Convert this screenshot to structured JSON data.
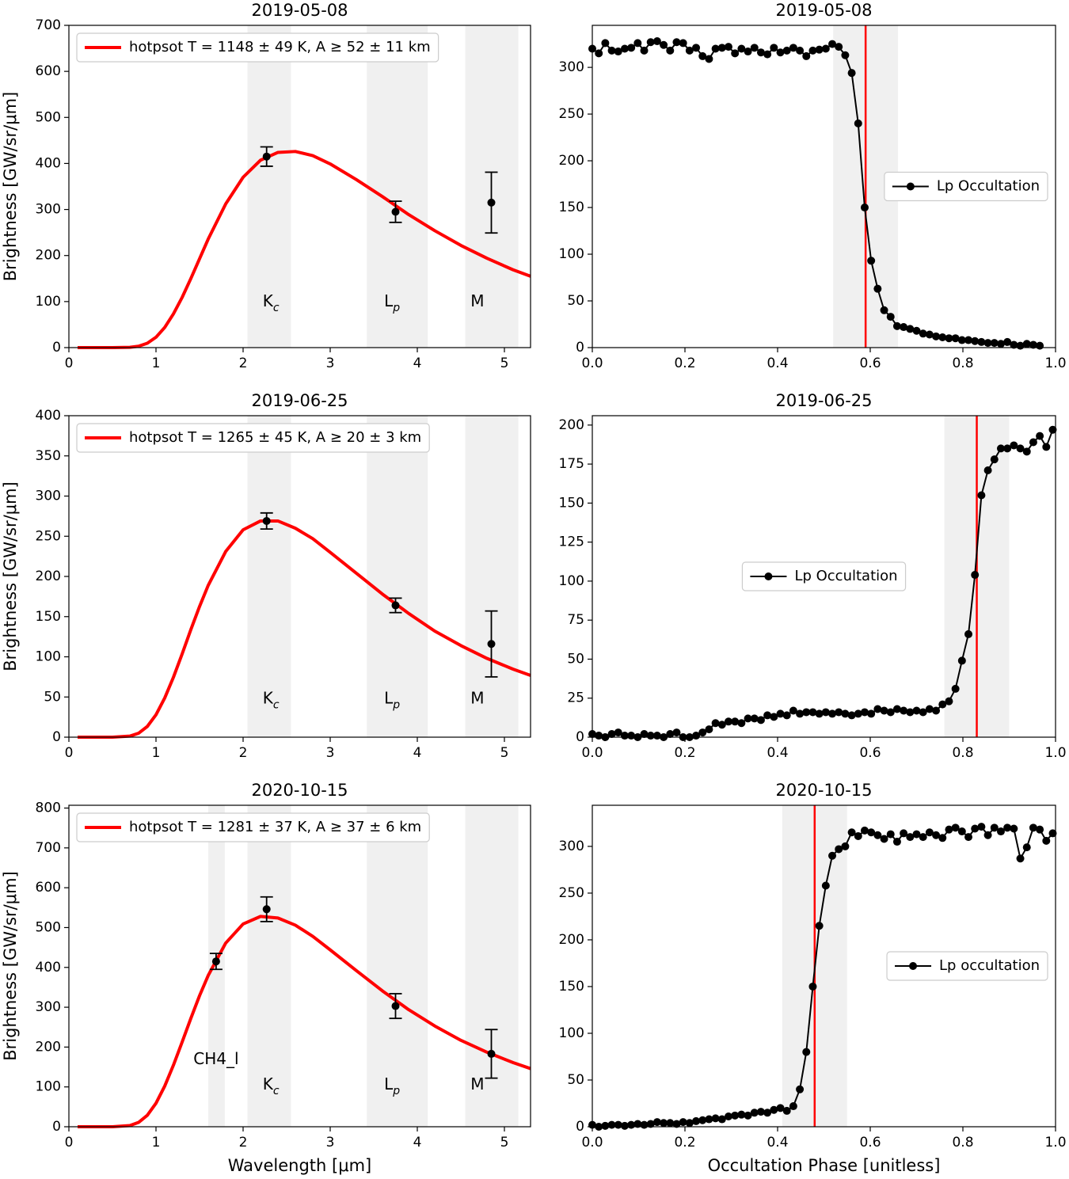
{
  "chart_data": [
    {
      "type": "line",
      "title": "2019-05-08",
      "ylabel": "Brightness [GW/sr/μm]",
      "xlim": [
        0,
        5.3
      ],
      "ylim": [
        0,
        700
      ],
      "xticks": [
        0,
        1,
        2,
        3,
        4,
        5
      ],
      "yticks": [
        0,
        100,
        200,
        300,
        400,
        500,
        600,
        700
      ],
      "legend": "upper left",
      "bands": [
        {
          "label": "K",
          "sub": "c",
          "range": [
            2.05,
            2.55
          ],
          "x": 2.32,
          "y": 100
        },
        {
          "label": "L",
          "sub": "p",
          "range": [
            3.42,
            4.12
          ],
          "x": 3.71,
          "y": 100
        },
        {
          "label": "M",
          "range": [
            4.55,
            5.16
          ],
          "x": 4.69,
          "y": 100
        }
      ],
      "series": [
        {
          "name": "hotpsot T = 1148 ± 49 K, A ≥ 52 ± 11 km",
          "color": "#ff0000",
          "x": [
            0.1,
            0.5,
            0.7,
            0.8,
            0.9,
            1.0,
            1.1,
            1.2,
            1.3,
            1.4,
            1.5,
            1.6,
            1.8,
            2.0,
            2.2,
            2.4,
            2.6,
            2.8,
            3.0,
            3.3,
            3.6,
            3.9,
            4.2,
            4.5,
            4.8,
            5.1,
            5.3
          ],
          "values": [
            0,
            0,
            0.6,
            3.0,
            9.4,
            22.5,
            43.7,
            73.2,
            109,
            150,
            193,
            236,
            312,
            370,
            407,
            424,
            426,
            417,
            399,
            365,
            328,
            289,
            254,
            222,
            194,
            169,
            155
          ]
        },
        {
          "color": "#000000",
          "marker": true,
          "line": false,
          "x": [
            2.27,
            3.75,
            4.85
          ],
          "values": [
            415,
            295,
            315
          ],
          "errors": [
            21,
            23,
            66
          ]
        }
      ]
    },
    {
      "type": "line",
      "title": "2019-05-08",
      "xlim": [
        0,
        1
      ],
      "ylim": [
        0,
        345
      ],
      "xticks": [
        {
          "value": 0,
          "label": "0.0"
        },
        0.2,
        0.4,
        0.6,
        0.8,
        {
          "value": 1,
          "label": "1.0"
        }
      ],
      "yticks": [
        0,
        50,
        100,
        150,
        200,
        250,
        300
      ],
      "legend": "center right",
      "bands": [
        {
          "range": [
            0.52,
            0.66
          ]
        }
      ],
      "vlines": [
        {
          "x": 0.59,
          "color": "#ff0000"
        }
      ],
      "series": [
        {
          "name": "Lp Occultation",
          "color": "#000000",
          "marker": true,
          "line": true,
          "x": [
            0,
            0.014,
            0.028,
            0.042,
            0.056,
            0.07,
            0.084,
            0.098,
            0.112,
            0.126,
            0.14,
            0.154,
            0.168,
            0.182,
            0.196,
            0.21,
            0.224,
            0.238,
            0.252,
            0.266,
            0.28,
            0.294,
            0.308,
            0.322,
            0.336,
            0.35,
            0.364,
            0.378,
            0.392,
            0.406,
            0.42,
            0.434,
            0.448,
            0.462,
            0.476,
            0.49,
            0.504,
            0.518,
            0.532,
            0.546,
            0.56,
            0.574,
            0.588,
            0.602,
            0.616,
            0.63,
            0.644,
            0.658,
            0.672,
            0.686,
            0.7,
            0.714,
            0.728,
            0.742,
            0.756,
            0.77,
            0.784,
            0.798,
            0.812,
            0.826,
            0.84,
            0.854,
            0.868,
            0.882,
            0.896,
            0.91,
            0.924,
            0.938,
            0.952,
            0.966
          ],
          "values": [
            320,
            315,
            326,
            318,
            317,
            320,
            321,
            326,
            318,
            327,
            328,
            324,
            318,
            327,
            326,
            318,
            321,
            312,
            309,
            320,
            321,
            322,
            315,
            320,
            317,
            321,
            316,
            314,
            321,
            316,
            318,
            321,
            318,
            312,
            318,
            319,
            320,
            325,
            322,
            313,
            294,
            240,
            150,
            93,
            63,
            40,
            33,
            23,
            22,
            20,
            18,
            15,
            14,
            12,
            11,
            10,
            10,
            8,
            8,
            7,
            6,
            5,
            5,
            4,
            6,
            3,
            2,
            4,
            3,
            2
          ]
        }
      ]
    },
    {
      "type": "line",
      "title": "2019-06-25",
      "ylabel": "Brightness [GW/sr/μm]",
      "xlim": [
        0,
        5.3
      ],
      "ylim": [
        0,
        400
      ],
      "xticks": [
        0,
        1,
        2,
        3,
        4,
        5
      ],
      "yticks": [
        0,
        50,
        100,
        150,
        200,
        250,
        300,
        350,
        400
      ],
      "legend": "upper left",
      "bands": [
        {
          "label": "K",
          "sub": "c",
          "range": [
            2.05,
            2.55
          ],
          "x": 2.32,
          "y": 48
        },
        {
          "label": "L",
          "sub": "p",
          "range": [
            3.42,
            4.12
          ],
          "x": 3.71,
          "y": 48
        },
        {
          "label": "M",
          "range": [
            4.55,
            5.16
          ],
          "x": 4.69,
          "y": 48
        }
      ],
      "series": [
        {
          "name": "hotpsot T = 1265 ± 45 K, A ≥ 20 ± 3 km",
          "color": "#ff0000",
          "x": [
            0.1,
            0.5,
            0.7,
            0.8,
            0.9,
            1.0,
            1.1,
            1.2,
            1.3,
            1.4,
            1.5,
            1.6,
            1.8,
            2.0,
            2.2,
            2.4,
            2.6,
            2.8,
            3.0,
            3.3,
            3.6,
            3.9,
            4.2,
            4.5,
            4.8,
            5.1,
            5.3
          ],
          "values": [
            0,
            0,
            1.3,
            4.9,
            13.3,
            27.9,
            48.7,
            74.5,
            103.5,
            133.8,
            162.6,
            189,
            231,
            258,
            269,
            269,
            260,
            247,
            230,
            204,
            178,
            154,
            132,
            114,
            98,
            84.6,
            76.8
          ]
        },
        {
          "color": "#000000",
          "marker": true,
          "line": false,
          "x": [
            2.27,
            3.75,
            4.85
          ],
          "values": [
            269,
            164,
            116
          ],
          "errors": [
            10,
            9,
            41
          ]
        }
      ]
    },
    {
      "type": "line",
      "title": "2019-06-25",
      "xlim": [
        0,
        1
      ],
      "ylim": [
        0,
        206
      ],
      "xticks": [
        {
          "value": 0,
          "label": "0.0"
        },
        0.2,
        0.4,
        0.6,
        0.8,
        {
          "value": 1,
          "label": "1.0"
        }
      ],
      "yticks": [
        0,
        25,
        50,
        75,
        100,
        125,
        150,
        175,
        200
      ],
      "legend": "center",
      "bands": [
        {
          "range": [
            0.76,
            0.9
          ]
        }
      ],
      "vlines": [
        {
          "x": 0.83,
          "color": "#ff0000"
        }
      ],
      "series": [
        {
          "name": "Lp Occultation",
          "color": "#000000",
          "marker": true,
          "line": true,
          "x": [
            0,
            0.014,
            0.028,
            0.042,
            0.056,
            0.07,
            0.084,
            0.098,
            0.112,
            0.126,
            0.14,
            0.154,
            0.168,
            0.182,
            0.196,
            0.21,
            0.224,
            0.238,
            0.252,
            0.266,
            0.28,
            0.294,
            0.308,
            0.322,
            0.336,
            0.35,
            0.364,
            0.378,
            0.392,
            0.406,
            0.42,
            0.434,
            0.448,
            0.462,
            0.476,
            0.49,
            0.504,
            0.518,
            0.532,
            0.546,
            0.56,
            0.574,
            0.588,
            0.602,
            0.616,
            0.63,
            0.644,
            0.658,
            0.672,
            0.686,
            0.7,
            0.714,
            0.728,
            0.742,
            0.756,
            0.77,
            0.784,
            0.798,
            0.812,
            0.826,
            0.84,
            0.854,
            0.868,
            0.882,
            0.896,
            0.91,
            0.924,
            0.938,
            0.952,
            0.966,
            0.98,
            0.994
          ],
          "values": [
            2,
            1,
            0,
            2,
            3,
            1,
            1,
            0,
            2,
            1,
            1,
            0,
            2,
            3,
            0,
            0,
            1,
            3,
            5,
            9,
            8,
            10,
            10,
            9,
            12,
            12,
            11,
            14,
            13,
            15,
            14,
            17,
            15,
            16,
            16,
            15,
            16,
            15,
            16,
            15,
            14,
            15,
            16,
            15,
            18,
            17,
            16,
            18,
            17,
            16,
            17,
            16,
            18,
            17,
            21,
            23,
            31,
            49,
            66,
            104,
            155,
            171,
            178,
            185,
            185,
            187,
            185,
            183,
            189,
            193,
            186,
            197
          ]
        }
      ]
    },
    {
      "type": "line",
      "title": "2020-10-15",
      "xlabel": "Wavelength [μm]",
      "ylabel": "Brightness [GW/sr/μm]",
      "xlim": [
        0,
        5.3
      ],
      "ylim": [
        0,
        807
      ],
      "xticks": [
        0,
        1,
        2,
        3,
        4,
        5
      ],
      "yticks": [
        0,
        100,
        200,
        300,
        400,
        500,
        600,
        700,
        800
      ],
      "legend": "upper left",
      "bands": [
        {
          "label": "CH4_l",
          "range": [
            1.6,
            1.79
          ],
          "x": 1.69,
          "y": 169
        },
        {
          "label": "K",
          "sub": "c",
          "range": [
            2.05,
            2.55
          ],
          "x": 2.32,
          "y": 105
        },
        {
          "label": "L",
          "sub": "p",
          "range": [
            3.42,
            4.12
          ],
          "x": 3.71,
          "y": 105
        },
        {
          "label": "M",
          "range": [
            4.55,
            5.16
          ],
          "x": 4.69,
          "y": 105
        }
      ],
      "series": [
        {
          "name": "hotpsot T = 1281 ± 37 K, A ≥ 37 ± 6 km",
          "color": "#ff0000",
          "x": [
            0.1,
            0.5,
            0.7,
            0.8,
            0.9,
            1.0,
            1.1,
            1.2,
            1.3,
            1.4,
            1.5,
            1.6,
            1.8,
            2.0,
            2.2,
            2.4,
            2.6,
            2.8,
            3.0,
            3.3,
            3.6,
            3.9,
            4.2,
            4.5,
            4.8,
            5.1,
            5.3
          ],
          "values": [
            0,
            0,
            2.9,
            10.9,
            28.7,
            59,
            102,
            154.5,
            212.6,
            272,
            329,
            380,
            461,
            509,
            528,
            524,
            506,
            478,
            444,
            392,
            341,
            294,
            253,
            217,
            187,
            161,
            146
          ]
        },
        {
          "color": "#000000",
          "marker": true,
          "line": false,
          "x": [
            1.69,
            2.27,
            3.75,
            4.85
          ],
          "values": [
            415,
            546,
            303,
            183
          ],
          "errors": [
            20,
            31,
            31,
            61
          ]
        }
      ]
    },
    {
      "type": "line",
      "title": "2020-10-15",
      "xlabel": "Occultation Phase [unitless]",
      "xlim": [
        0,
        1
      ],
      "ylim": [
        0,
        344
      ],
      "xticks": [
        {
          "value": 0,
          "label": "0.0"
        },
        0.2,
        0.4,
        0.6,
        0.8,
        {
          "value": 1,
          "label": "1.0"
        }
      ],
      "yticks": [
        0,
        50,
        100,
        150,
        200,
        250,
        300
      ],
      "legend": "center right",
      "bands": [
        {
          "range": [
            0.41,
            0.55
          ]
        }
      ],
      "vlines": [
        {
          "x": 0.48,
          "color": "#ff0000"
        }
      ],
      "series": [
        {
          "name": "Lp occultation",
          "color": "#000000",
          "marker": true,
          "line": true,
          "x": [
            0,
            0.014,
            0.028,
            0.042,
            0.056,
            0.07,
            0.084,
            0.098,
            0.112,
            0.126,
            0.14,
            0.154,
            0.168,
            0.182,
            0.196,
            0.21,
            0.224,
            0.238,
            0.252,
            0.266,
            0.28,
            0.294,
            0.308,
            0.322,
            0.336,
            0.35,
            0.364,
            0.378,
            0.392,
            0.406,
            0.42,
            0.434,
            0.448,
            0.462,
            0.476,
            0.49,
            0.504,
            0.518,
            0.532,
            0.546,
            0.56,
            0.574,
            0.588,
            0.602,
            0.616,
            0.63,
            0.644,
            0.658,
            0.672,
            0.686,
            0.7,
            0.714,
            0.728,
            0.742,
            0.756,
            0.77,
            0.784,
            0.798,
            0.812,
            0.826,
            0.84,
            0.854,
            0.868,
            0.882,
            0.896,
            0.91,
            0.924,
            0.938,
            0.952,
            0.966,
            0.98,
            0.994
          ],
          "values": [
            2,
            0,
            1,
            2,
            2,
            1,
            2,
            3,
            2,
            3,
            5,
            4,
            4,
            3,
            5,
            4,
            6,
            7,
            8,
            9,
            8,
            11,
            12,
            13,
            12,
            15,
            16,
            15,
            18,
            20,
            17,
            22,
            40,
            80,
            150,
            215,
            258,
            290,
            297,
            300,
            315,
            311,
            317,
            315,
            312,
            308,
            313,
            305,
            314,
            310,
            313,
            310,
            315,
            312,
            309,
            318,
            320,
            316,
            310,
            319,
            321,
            312,
            320,
            316,
            320,
            319,
            287,
            299,
            320,
            318,
            306,
            314
          ]
        }
      ]
    }
  ]
}
